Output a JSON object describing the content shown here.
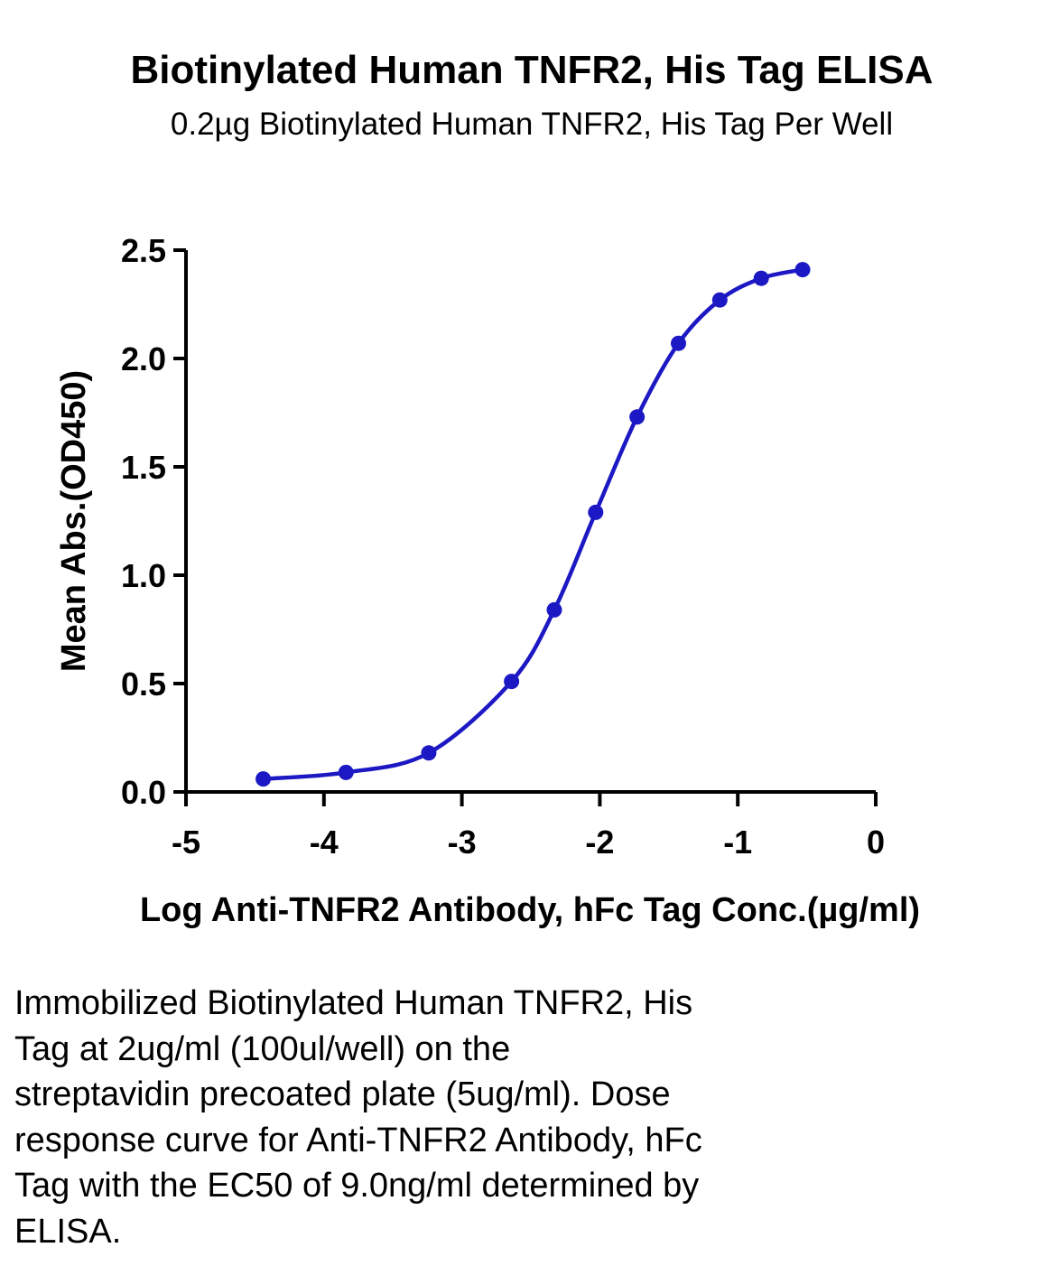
{
  "chart_data": {
    "type": "line",
    "title": "Biotinylated Human TNFR2, His Tag ELISA",
    "subtitle": "0.2µg Biotinylated Human TNFR2, His Tag Per Well",
    "xlabel": "Log Anti-TNFR2 Antibody, hFc Tag Conc.(µg/ml)",
    "ylabel": "Mean Abs.(OD450)",
    "xlim": [
      -5,
      0
    ],
    "ylim": [
      0,
      2.5
    ],
    "xticks": [
      -5,
      -4,
      -3,
      -2,
      -1,
      0
    ],
    "xtick_labels": [
      "-5",
      "-4",
      "-3",
      "-2",
      "-1",
      "0"
    ],
    "yticks": [
      0,
      0.5,
      1.0,
      1.5,
      2.0,
      2.5
    ],
    "ytick_labels": [
      "0.0",
      "0.5",
      "1.0",
      "1.5",
      "2.0",
      "2.5"
    ],
    "grid": false,
    "legend": "none",
    "series": [
      {
        "color": "#1c18c4",
        "marker": "circle",
        "x": [
          -4.44,
          -3.84,
          -3.24,
          -2.64,
          -2.33,
          -2.03,
          -1.73,
          -1.43,
          -1.13,
          -0.83,
          -0.53
        ],
        "y": [
          0.06,
          0.09,
          0.18,
          0.51,
          0.84,
          1.29,
          1.73,
          2.07,
          2.27,
          2.37,
          2.41
        ]
      }
    ]
  },
  "caption": {
    "lines": [
      "Immobilized Biotinylated Human TNFR2, His",
      "Tag at 2ug/ml (100ul/well) on the",
      "streptavidin precoated plate (5ug/ml). Dose",
      "response curve for Anti-TNFR2 Antibody, hFc",
      "Tag with the EC50 of 9.0ng/ml determined by",
      "ELISA."
    ]
  }
}
